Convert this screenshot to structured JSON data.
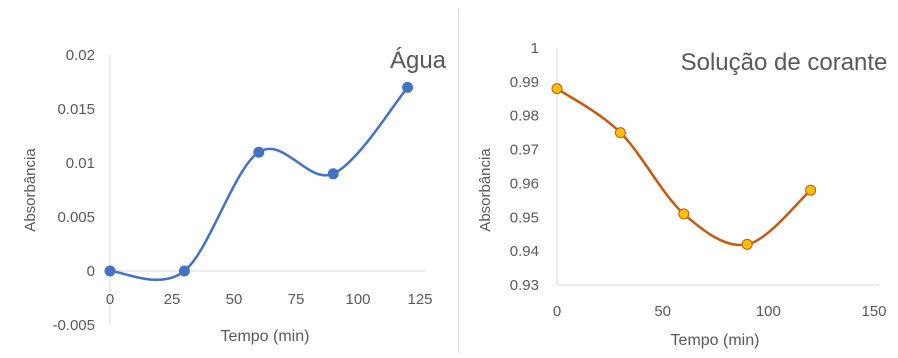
{
  "chart_data": [
    {
      "type": "line",
      "title": "Água",
      "xlabel": "Tempo (min)",
      "ylabel": "Absorbância",
      "xlim": [
        0,
        125
      ],
      "ylim": [
        -0.005,
        0.02
      ],
      "xticks": [
        "0",
        "25",
        "50",
        "75",
        "100",
        "125"
      ],
      "yticks": [
        "-0.005",
        "0",
        "0.005",
        "0.01",
        "0.015",
        "0.02"
      ],
      "smooth": true,
      "grid": false,
      "series": [
        {
          "x": [
            0,
            30,
            60,
            90,
            120
          ],
          "y": [
            0,
            0,
            0.011,
            0.009,
            0.017
          ],
          "color": "#4472C4",
          "marker_color": "#4472C4"
        }
      ]
    },
    {
      "type": "line",
      "title": "Solução de corante",
      "xlabel": "Tempo (min)",
      "ylabel": "Absorbância",
      "xlim": [
        0,
        150
      ],
      "ylim": [
        0.93,
        1
      ],
      "xticks": [
        "0",
        "50",
        "100",
        "150"
      ],
      "yticks": [
        "0.93",
        "0.94",
        "0.95",
        "0.96",
        "0.97",
        "0.98",
        "0.99",
        "1"
      ],
      "smooth": true,
      "grid": false,
      "series": [
        {
          "x": [
            0,
            30,
            60,
            90,
            120
          ],
          "y": [
            0.988,
            0.975,
            0.951,
            0.942,
            0.958
          ],
          "color": "#C55A11",
          "marker_color": "#FFC000"
        }
      ]
    }
  ]
}
